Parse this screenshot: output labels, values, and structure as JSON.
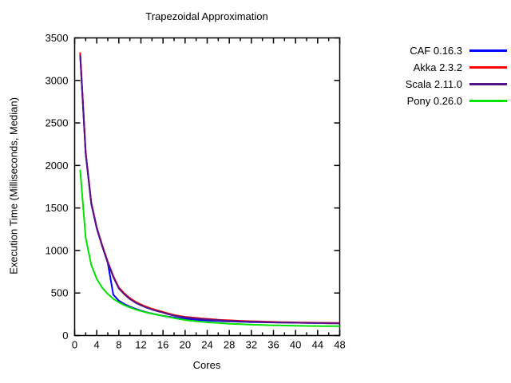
{
  "chart_data": {
    "type": "line",
    "title": "Trapezoidal Approximation",
    "xlabel": "Cores",
    "ylabel": "Execution Time (Milliseconds, Median)",
    "xlim": [
      0,
      48
    ],
    "ylim": [
      0,
      3500
    ],
    "x_major_ticks": [
      0,
      4,
      8,
      12,
      16,
      20,
      24,
      28,
      32,
      36,
      40,
      44,
      48
    ],
    "x_minor_tick_step": 2,
    "y_major_ticks": [
      0,
      500,
      1000,
      1500,
      2000,
      2500,
      3000,
      3500
    ],
    "grid": false,
    "legend_position": "outside-top-right",
    "background_color": "#ffffff",
    "axis_color": "#000000",
    "x": [
      1,
      2,
      3,
      4,
      5,
      6,
      7,
      8,
      9,
      10,
      11,
      12,
      13,
      14,
      15,
      16,
      17,
      18,
      19,
      20,
      21,
      22,
      23,
      24,
      25,
      26,
      27,
      28,
      29,
      30,
      31,
      32,
      33,
      34,
      35,
      36,
      37,
      38,
      39,
      40,
      41,
      42,
      43,
      44,
      45,
      46,
      47,
      48
    ],
    "series": [
      {
        "name": "CAF 0.16.3",
        "color": "#0000ff",
        "values": [
          3310,
          2140,
          1550,
          1260,
          1050,
          855,
          480,
          410,
          370,
          340,
          315,
          293,
          274,
          258,
          244,
          231,
          221,
          212,
          204,
          197,
          191,
          186,
          181,
          177,
          174,
          171,
          168,
          166,
          164,
          162,
          160,
          158,
          157,
          156,
          155,
          154,
          153,
          152,
          151,
          150,
          150,
          149,
          148,
          148,
          147,
          147,
          146,
          146
        ]
      },
      {
        "name": "Akka 2.3.2",
        "color": "#ff0000",
        "values": [
          3330,
          2160,
          1565,
          1272,
          1060,
          868,
          700,
          565,
          495,
          440,
          398,
          365,
          338,
          315,
          295,
          278,
          258,
          242,
          230,
          220,
          213,
          207,
          201,
          196,
          191,
          186,
          182,
          179,
          176,
          173,
          170,
          168,
          166,
          164,
          162,
          160,
          158,
          157,
          156,
          155,
          153,
          152,
          151,
          150,
          149,
          148,
          147,
          146
        ]
      },
      {
        "name": "Scala 2.11.0",
        "color": "#53148a",
        "values": [
          3300,
          2145,
          1552,
          1260,
          1048,
          856,
          688,
          553,
          483,
          429,
          387,
          355,
          328,
          306,
          286,
          269,
          250,
          235,
          223,
          213,
          206,
          200,
          194,
          189,
          184,
          180,
          176,
          173,
          170,
          167,
          165,
          163,
          161,
          159,
          157,
          155,
          154,
          153,
          152,
          151,
          149,
          148,
          147,
          146,
          145,
          144,
          143,
          142
        ]
      },
      {
        "name": "Pony 0.26.0",
        "color": "#00e400",
        "values": [
          1950,
          1150,
          830,
          665,
          560,
          488,
          432,
          390,
          357,
          330,
          307,
          288,
          271,
          257,
          244,
          233,
          218,
          205,
          193,
          183,
          175,
          168,
          161,
          156,
          151,
          147,
          143,
          139,
          136,
          133,
          130,
          128,
          126,
          124,
          122,
          120,
          119,
          117,
          116,
          115,
          114,
          113,
          112,
          112,
          111,
          111,
          110,
          110
        ]
      }
    ]
  }
}
